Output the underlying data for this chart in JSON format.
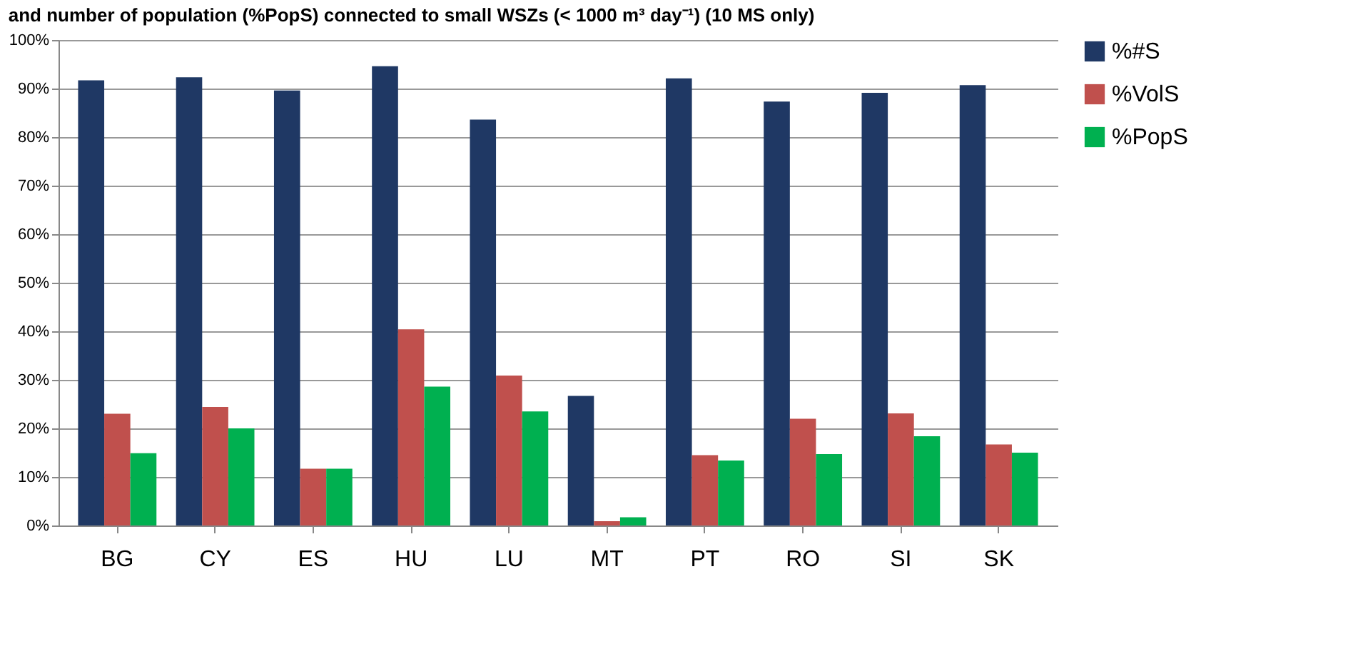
{
  "chart_data": {
    "type": "bar",
    "title": "and number of population (%PopS) connected to small WSZs (< 1000 m³ day⁻¹) (10 MS only)",
    "categories": [
      "BG",
      "CY",
      "ES",
      "HU",
      "LU",
      "MT",
      "PT",
      "RO",
      "SI",
      "SK"
    ],
    "series": [
      {
        "name": "%#S",
        "color": "#1f3864",
        "values": [
          91.7,
          92.3,
          89.6,
          94.6,
          83.6,
          26.7,
          92.1,
          87.3,
          89.1,
          90.7
        ]
      },
      {
        "name": "%VolS",
        "color": "#c0504d",
        "values": [
          23.0,
          24.4,
          11.7,
          40.4,
          30.9,
          0.9,
          14.5,
          22.0,
          23.1,
          16.7
        ]
      },
      {
        "name": "%PopS",
        "color": "#00b050",
        "values": [
          14.9,
          20.0,
          11.7,
          28.6,
          23.5,
          1.7,
          13.4,
          14.7,
          18.4,
          15.0
        ]
      }
    ],
    "ylim": [
      0,
      100
    ],
    "yticks": [
      {
        "value": 0,
        "label": "0%"
      },
      {
        "value": 10,
        "label": "10%"
      },
      {
        "value": 20,
        "label": "20%"
      },
      {
        "value": 30,
        "label": "30%"
      },
      {
        "value": 40,
        "label": "40%"
      },
      {
        "value": 50,
        "label": "50%"
      },
      {
        "value": 60,
        "label": "60%"
      },
      {
        "value": 70,
        "label": "70%"
      },
      {
        "value": 80,
        "label": "80%"
      },
      {
        "value": 90,
        "label": "90%"
      },
      {
        "value": 100,
        "label": "100%"
      }
    ],
    "grid": "y",
    "legend": "right"
  }
}
